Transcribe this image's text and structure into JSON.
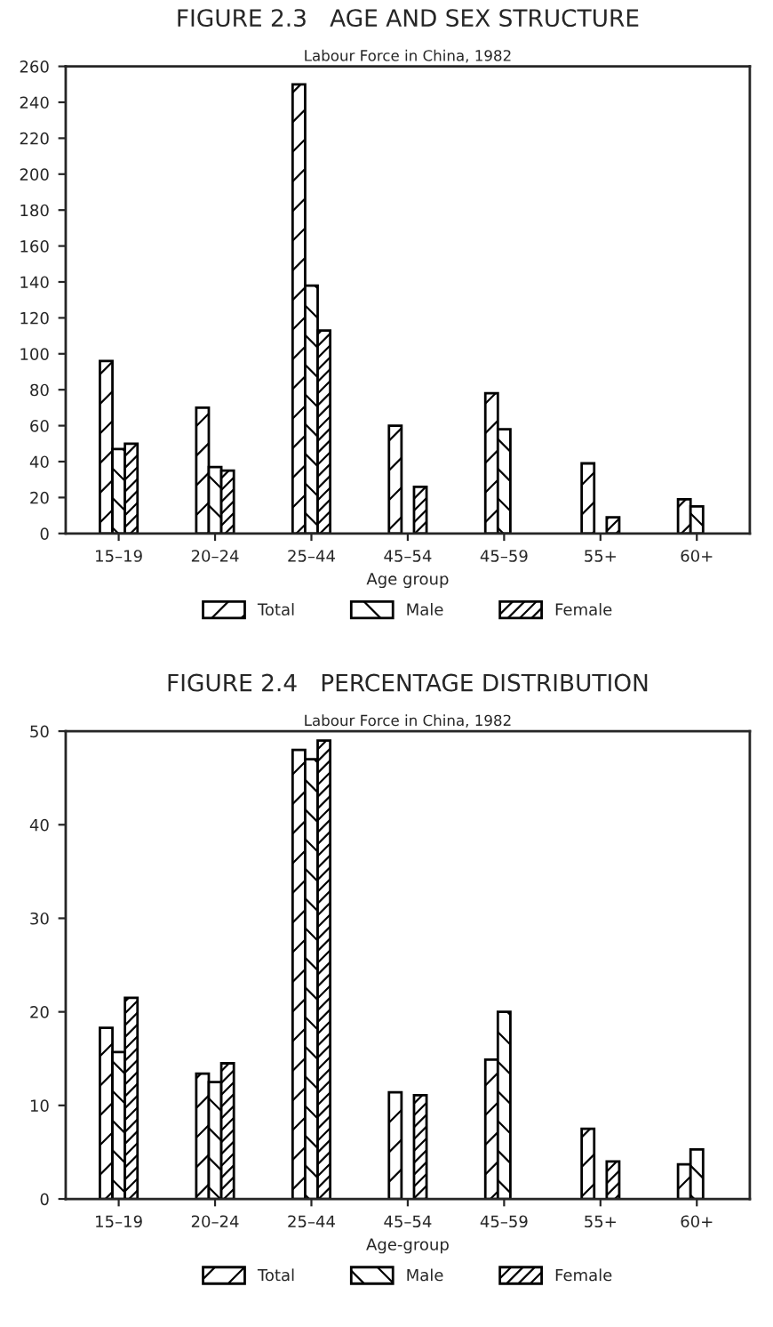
{
  "chart_data": [
    {
      "type": "bar",
      "title": "FIGURE 2.3   AGE AND SEX STRUCTURE",
      "subtitle": "Labour Force in China, 1982",
      "xlabel": "Age group",
      "categories": [
        "15–19",
        "20–24",
        "25–44",
        "45–54",
        "45–59",
        "55+",
        "60+"
      ],
      "series": [
        {
          "name": "Total",
          "color": "#000000",
          "values": [
            96,
            70,
            250,
            60,
            78,
            39,
            19
          ]
        },
        {
          "name": "Male",
          "color": "#000000",
          "values": [
            47,
            37,
            138,
            null,
            58,
            null,
            15
          ]
        },
        {
          "name": "Female",
          "color": "#000000",
          "values": [
            50,
            35,
            113,
            26,
            null,
            9,
            null
          ]
        }
      ],
      "ylim": [
        0,
        260
      ],
      "yticks": [
        0,
        20,
        40,
        60,
        80,
        100,
        120,
        140,
        160,
        180,
        200,
        220,
        240,
        260
      ],
      "grid": false,
      "legend": "bottom"
    },
    {
      "type": "bar",
      "title": "FIGURE 2.4   PERCENTAGE DISTRIBUTION",
      "subtitle": "Labour Force in China, 1982",
      "xlabel": "Age-group",
      "categories": [
        "15–19",
        "20–24",
        "25–44",
        "45–54",
        "45–59",
        "55+",
        "60+"
      ],
      "series": [
        {
          "name": "Total",
          "color": "#000000",
          "values": [
            18.3,
            13.4,
            48,
            11.4,
            14.9,
            7.5,
            3.7
          ]
        },
        {
          "name": "Male",
          "color": "#000000",
          "values": [
            15.7,
            12.5,
            47,
            null,
            20,
            null,
            5.3
          ]
        },
        {
          "name": "Female",
          "color": "#000000",
          "values": [
            21.5,
            14.5,
            49,
            11.1,
            null,
            4.0,
            null
          ]
        }
      ],
      "ylim": [
        0,
        50
      ],
      "yticks": [
        0,
        10,
        20,
        30,
        40,
        50
      ],
      "grid": false,
      "legend": "bottom"
    }
  ]
}
